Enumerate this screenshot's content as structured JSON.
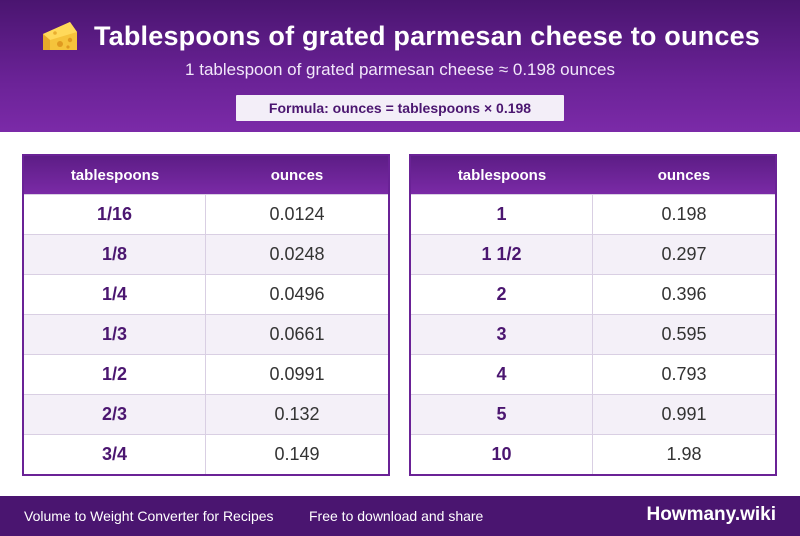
{
  "header": {
    "icon": "cheese-icon",
    "title": "Tablespoons of grated parmesan cheese to ounces",
    "subtitle": "1 tablespoon of grated parmesan cheese ≈ 0.198 ounces",
    "formula": "Formula: ounces = tablespoons × 0.198"
  },
  "tables": {
    "left": {
      "headers": [
        "tablespoons",
        "ounces"
      ],
      "rows": [
        [
          "1/16",
          "0.0124"
        ],
        [
          "1/8",
          "0.0248"
        ],
        [
          "1/4",
          "0.0496"
        ],
        [
          "1/3",
          "0.0661"
        ],
        [
          "1/2",
          "0.0991"
        ],
        [
          "2/3",
          "0.132"
        ],
        [
          "3/4",
          "0.149"
        ]
      ]
    },
    "right": {
      "headers": [
        "tablespoons",
        "ounces"
      ],
      "rows": [
        [
          "1",
          "0.198"
        ],
        [
          "1 1/2",
          "0.297"
        ],
        [
          "2",
          "0.396"
        ],
        [
          "3",
          "0.595"
        ],
        [
          "4",
          "0.793"
        ],
        [
          "5",
          "0.991"
        ],
        [
          "10",
          "1.98"
        ]
      ]
    }
  },
  "footer": {
    "left_text": "Volume to Weight Converter for Recipes",
    "middle_text": "Free to download and share",
    "brand": "Howmany.wiki"
  },
  "colors": {
    "primary": "#6a2296",
    "dark": "#4a1570",
    "row_alt": "#f4f0f8"
  }
}
